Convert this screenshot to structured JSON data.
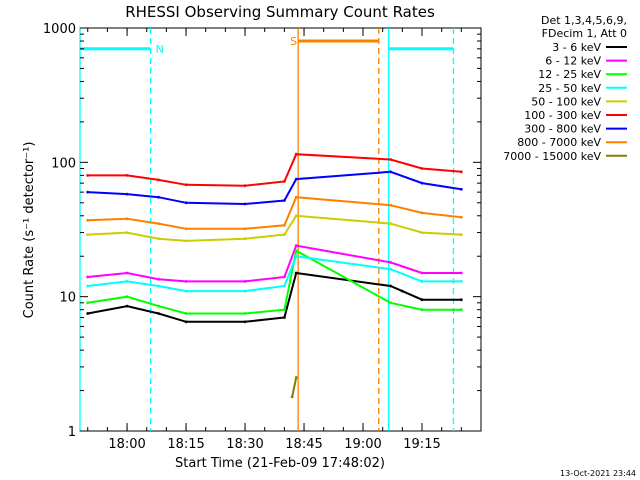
{
  "chart_data": {
    "type": "line",
    "title": "RHESSI Observing Summary Count Rates",
    "xlabel": "Start Time (21-Feb-09 17:48:02)",
    "ylabel": "Count Rate (s⁻¹ detector⁻¹)",
    "yscale": "log",
    "ylim": [
      1,
      1000
    ],
    "xlim": [
      "17:48:02",
      "19:30:00"
    ],
    "x_ticks": [
      "18:00",
      "18:15",
      "18:30",
      "18:45",
      "19:00",
      "19:15"
    ],
    "y_ticks": [
      "1",
      "10",
      "100",
      "1000"
    ],
    "grid": false,
    "legend_position": "right",
    "legend_header": [
      "Det 1,3,4,5,6,9,",
      "FDecim 1, Att 0"
    ],
    "timestamp": "13-Oct-2021 23:44",
    "series": [
      {
        "name": "3 - 6 keV",
        "color": "#000000",
        "values": [
          {
            "t": "17:50",
            "v": 7.5
          },
          {
            "t": "18:00",
            "v": 8.5
          },
          {
            "t": "18:08",
            "v": 7.5
          },
          {
            "t": "18:15",
            "v": 6.5
          },
          {
            "t": "18:30",
            "v": 6.5
          },
          {
            "t": "18:40",
            "v": 7.0
          },
          {
            "t": "18:43",
            "v": 15
          },
          {
            "t": "19:07",
            "v": 12
          },
          {
            "t": "19:10",
            "v": 11
          },
          {
            "t": "19:15",
            "v": 9.5
          },
          {
            "t": "19:25",
            "v": 9.5
          }
        ]
      },
      {
        "name": "6 - 12 keV",
        "color": "#ff00ff",
        "values": [
          {
            "t": "17:50",
            "v": 14
          },
          {
            "t": "18:00",
            "v": 15
          },
          {
            "t": "18:08",
            "v": 13.5
          },
          {
            "t": "18:15",
            "v": 13
          },
          {
            "t": "18:30",
            "v": 13
          },
          {
            "t": "18:40",
            "v": 14
          },
          {
            "t": "18:43",
            "v": 24
          },
          {
            "t": "19:07",
            "v": 18
          },
          {
            "t": "19:15",
            "v": 15
          },
          {
            "t": "19:25",
            "v": 15
          }
        ]
      },
      {
        "name": "12 - 25 keV",
        "color": "#00ff00",
        "values": [
          {
            "t": "17:50",
            "v": 9.0
          },
          {
            "t": "18:00",
            "v": 10
          },
          {
            "t": "18:08",
            "v": 8.5
          },
          {
            "t": "18:15",
            "v": 7.5
          },
          {
            "t": "18:30",
            "v": 7.5
          },
          {
            "t": "18:40",
            "v": 8.0
          },
          {
            "t": "18:43",
            "v": 22
          },
          {
            "t": "19:07",
            "v": 9.0
          },
          {
            "t": "19:15",
            "v": 8.0
          },
          {
            "t": "19:25",
            "v": 8.0
          }
        ]
      },
      {
        "name": "25 - 50 keV",
        "color": "#00ffff",
        "values": [
          {
            "t": "17:50",
            "v": 12
          },
          {
            "t": "18:00",
            "v": 13
          },
          {
            "t": "18:08",
            "v": 12
          },
          {
            "t": "18:15",
            "v": 11
          },
          {
            "t": "18:30",
            "v": 11
          },
          {
            "t": "18:40",
            "v": 12
          },
          {
            "t": "18:43",
            "v": 20
          },
          {
            "t": "19:07",
            "v": 16
          },
          {
            "t": "19:15",
            "v": 13
          },
          {
            "t": "19:25",
            "v": 13
          }
        ]
      },
      {
        "name": "50 - 100 keV",
        "color": "#cccc00",
        "values": [
          {
            "t": "17:50",
            "v": 29
          },
          {
            "t": "18:00",
            "v": 30
          },
          {
            "t": "18:08",
            "v": 27
          },
          {
            "t": "18:15",
            "v": 26
          },
          {
            "t": "18:30",
            "v": 27
          },
          {
            "t": "18:40",
            "v": 29
          },
          {
            "t": "18:43",
            "v": 40
          },
          {
            "t": "19:07",
            "v": 35
          },
          {
            "t": "19:15",
            "v": 30
          },
          {
            "t": "19:25",
            "v": 29
          }
        ]
      },
      {
        "name": "100 - 300 keV",
        "color": "#ff0000",
        "values": [
          {
            "t": "17:50",
            "v": 80
          },
          {
            "t": "18:00",
            "v": 80
          },
          {
            "t": "18:08",
            "v": 74
          },
          {
            "t": "18:15",
            "v": 68
          },
          {
            "t": "18:30",
            "v": 67
          },
          {
            "t": "18:40",
            "v": 72
          },
          {
            "t": "18:43",
            "v": 115
          },
          {
            "t": "19:07",
            "v": 105
          },
          {
            "t": "19:15",
            "v": 90
          },
          {
            "t": "19:25",
            "v": 85
          }
        ]
      },
      {
        "name": "300 - 800 keV",
        "color": "#0000ff",
        "values": [
          {
            "t": "17:50",
            "v": 60
          },
          {
            "t": "18:00",
            "v": 58
          },
          {
            "t": "18:08",
            "v": 55
          },
          {
            "t": "18:15",
            "v": 50
          },
          {
            "t": "18:30",
            "v": 49
          },
          {
            "t": "18:40",
            "v": 52
          },
          {
            "t": "18:43",
            "v": 75
          },
          {
            "t": "19:07",
            "v": 85
          },
          {
            "t": "19:15",
            "v": 70
          },
          {
            "t": "19:25",
            "v": 63
          }
        ]
      },
      {
        "name": "800 - 7000 keV",
        "color": "#ff8000",
        "values": [
          {
            "t": "17:50",
            "v": 37
          },
          {
            "t": "18:00",
            "v": 38
          },
          {
            "t": "18:08",
            "v": 35
          },
          {
            "t": "18:15",
            "v": 32
          },
          {
            "t": "18:30",
            "v": 32
          },
          {
            "t": "18:40",
            "v": 34
          },
          {
            "t": "18:43",
            "v": 55
          },
          {
            "t": "19:07",
            "v": 48
          },
          {
            "t": "19:15",
            "v": 42
          },
          {
            "t": "19:25",
            "v": 39
          }
        ]
      },
      {
        "name": "7000 - 15000 keV",
        "color": "#808000",
        "values": [
          {
            "t": "18:42",
            "v": 1.8
          },
          {
            "t": "18:43",
            "v": 2.5
          }
        ]
      }
    ],
    "flags": [
      {
        "label": "N",
        "color": "#00ffff",
        "level": 700,
        "spans": [
          [
            "17:48:02",
            "18:06:00"
          ],
          [
            "19:06:30",
            "19:23:00"
          ]
        ]
      },
      {
        "label": "S",
        "color": "#ff8000",
        "level": 800,
        "spans": [
          [
            "18:43:30",
            "19:04:00"
          ]
        ]
      }
    ],
    "markers": [
      {
        "t": "17:48:02",
        "color": "#00ffff",
        "style": "solid"
      },
      {
        "t": "18:06:00",
        "color": "#00ffff",
        "style": "dashed"
      },
      {
        "t": "18:43:30",
        "color": "#ff8000",
        "style": "solid"
      },
      {
        "t": "19:04:00",
        "color": "#ff8000",
        "style": "dashed"
      },
      {
        "t": "19:06:30",
        "color": "#00ffff",
        "style": "solid"
      },
      {
        "t": "19:23:00",
        "color": "#00ffff",
        "style": "dashed"
      }
    ]
  }
}
